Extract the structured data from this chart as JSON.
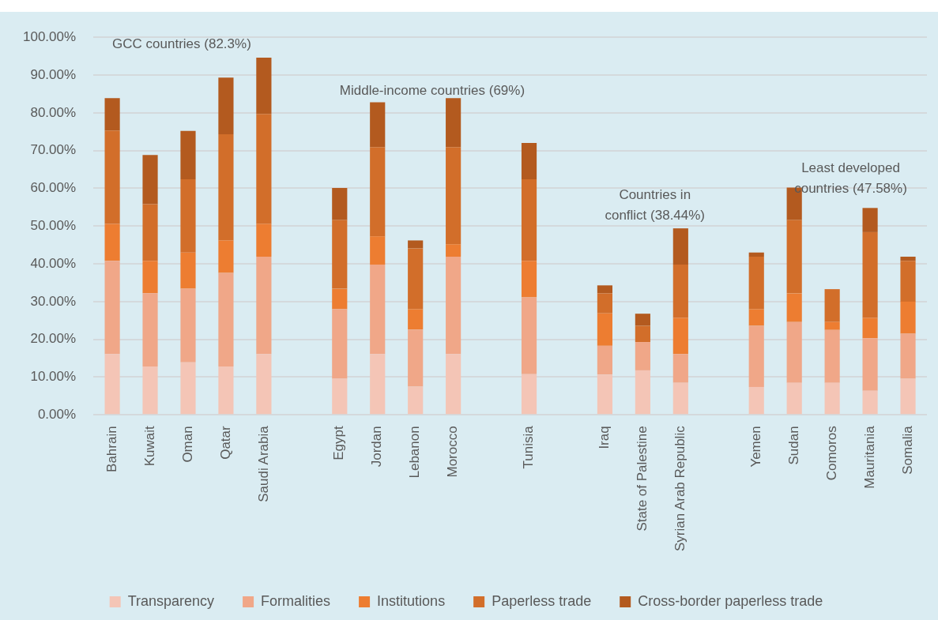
{
  "chart_data": {
    "type": "bar",
    "stacked": true,
    "categories": [
      "Bahrain",
      "Kuwait",
      "Oman",
      "Qatar",
      "Saudi Arabia",
      null,
      "Egypt",
      "Jordan",
      "Lebanon",
      "Morocco",
      null,
      "Tunisia",
      null,
      "Iraq",
      "State of Palestine",
      "Syrian Arab Republic",
      null,
      "Yemen",
      "Sudan",
      "Comoros",
      "Mauritania",
      "Somalia"
    ],
    "series": [
      {
        "name": "Transparency",
        "color": "#f4c5b6",
        "values": [
          16.1,
          12.8,
          13.9,
          12.8,
          16.1,
          null,
          9.6,
          16.1,
          7.5,
          16.1,
          null,
          10.8,
          null,
          10.7,
          11.8,
          8.5,
          null,
          7.4,
          8.5,
          8.5,
          6.4,
          9.6
        ]
      },
      {
        "name": "Formalities",
        "color": "#f0a788",
        "values": [
          24.7,
          19.4,
          19.5,
          24.8,
          25.8,
          null,
          18.4,
          23.7,
          15.1,
          25.8,
          null,
          20.3,
          null,
          7.6,
          7.5,
          7.6,
          null,
          16.2,
          16.1,
          14.0,
          13.9,
          11.9
        ]
      },
      {
        "name": "Institutions",
        "color": "#ed7d31",
        "values": [
          9.8,
          8.6,
          9.6,
          8.6,
          8.7,
          null,
          5.4,
          7.5,
          5.4,
          3.3,
          null,
          9.7,
          null,
          8.6,
          0,
          9.6,
          null,
          4.4,
          7.6,
          2.1,
          5.4,
          8.5
        ]
      },
      {
        "name": "Paperless trade",
        "color": "#d26e2a",
        "values": [
          24.7,
          15.0,
          19.4,
          28.1,
          29.1,
          null,
          18.2,
          23.6,
          16.1,
          25.7,
          null,
          21.6,
          null,
          5.3,
          4.3,
          14.1,
          null,
          13.9,
          19.4,
          8.7,
          22.7,
          10.8
        ]
      },
      {
        "name": "Cross-border paperless trade",
        "color": "#b35a1f",
        "values": [
          8.6,
          13.0,
          12.8,
          15.0,
          14.9,
          null,
          8.5,
          11.9,
          2.1,
          13.0,
          null,
          9.6,
          null,
          2.1,
          3.2,
          9.6,
          null,
          1.1,
          8.6,
          0,
          6.4,
          1.1
        ]
      }
    ],
    "ylim": [
      0,
      100
    ],
    "yticks": [
      {
        "value": 0,
        "label": "0.00%"
      },
      {
        "value": 10,
        "label": "10.00%"
      },
      {
        "value": 20,
        "label": "20.00%"
      },
      {
        "value": 30,
        "label": "30.00%"
      },
      {
        "value": 40,
        "label": "40.00%"
      },
      {
        "value": 50,
        "label": "50.00%"
      },
      {
        "value": 60,
        "label": "60.00%"
      },
      {
        "value": 70,
        "label": "70.00%"
      },
      {
        "value": 80,
        "label": "80.00%"
      },
      {
        "value": 90,
        "label": "90.00%"
      },
      {
        "value": 100,
        "label": "100.00%"
      }
    ],
    "grid": "y",
    "legend": "bottom",
    "annotations": [
      "GCC countries (82.3%)",
      "Middle-income countries (69%)",
      "Countries in conflict (38.44%)",
      "Least developed countries (47.58%)"
    ]
  }
}
